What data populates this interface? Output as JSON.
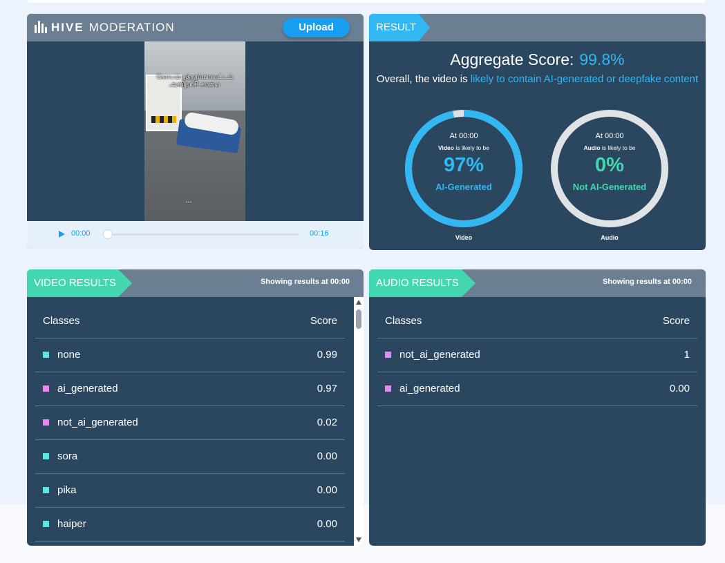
{
  "upload_panel": {
    "logo_bold": "HIVE",
    "logo_light": "MODERATION",
    "upload_label": "Upload",
    "video_overlay_line1": "கோயம்புத்தூர்மாவட்டம்",
    "video_overlay_line2": "அவிநாசி சாலை",
    "current_time": "00:00",
    "duration": "00:16",
    "progress_fraction": 0
  },
  "result_panel": {
    "tag": "RESULT",
    "aggregate_label": "Aggregate Score:",
    "aggregate_value": "99.8%",
    "overall_prefix": "Overall, the video is ",
    "overall_highlight": "likely to contain AI-generated or deepfake content",
    "gauges": [
      {
        "at": "At 00:00",
        "kind": "Video",
        "likely": " is likely to be",
        "percent": "97%",
        "percent_value": 97,
        "class_label": "AI-Generated",
        "label": "Video",
        "color": "#33b7f2"
      },
      {
        "at": "At 00:00",
        "kind": "Audio",
        "likely": " is likely to be",
        "percent": "0%",
        "percent_value": 0,
        "class_label": "Not AI-Generated",
        "label": "Audio",
        "color": "#42d7ae"
      }
    ]
  },
  "video_results": {
    "tag": "VIDEO RESULTS",
    "showing_prefix": "Showing results at ",
    "showing_time": "00:00",
    "col_classes": "Classes",
    "col_score": "Score",
    "rows": [
      {
        "name": "none",
        "score": "0.99",
        "color": "#5ee7e0"
      },
      {
        "name": "ai_generated",
        "score": "0.97",
        "color": "#e389f2"
      },
      {
        "name": "not_ai_generated",
        "score": "0.02",
        "color": "#e389f2"
      },
      {
        "name": "sora",
        "score": "0.00",
        "color": "#5ee7e0"
      },
      {
        "name": "pika",
        "score": "0.00",
        "color": "#5ee7e0"
      },
      {
        "name": "haiper",
        "score": "0.00",
        "color": "#5ee7e0"
      }
    ]
  },
  "audio_results": {
    "tag": "AUDIO RESULTS",
    "showing_prefix": "Showing results at ",
    "showing_time": "00:00",
    "col_classes": "Classes",
    "col_score": "Score",
    "rows": [
      {
        "name": "not_ai_generated",
        "score": "1",
        "color": "#e389f2"
      },
      {
        "name": "ai_generated",
        "score": "0.00",
        "color": "#e389f2"
      }
    ]
  }
}
